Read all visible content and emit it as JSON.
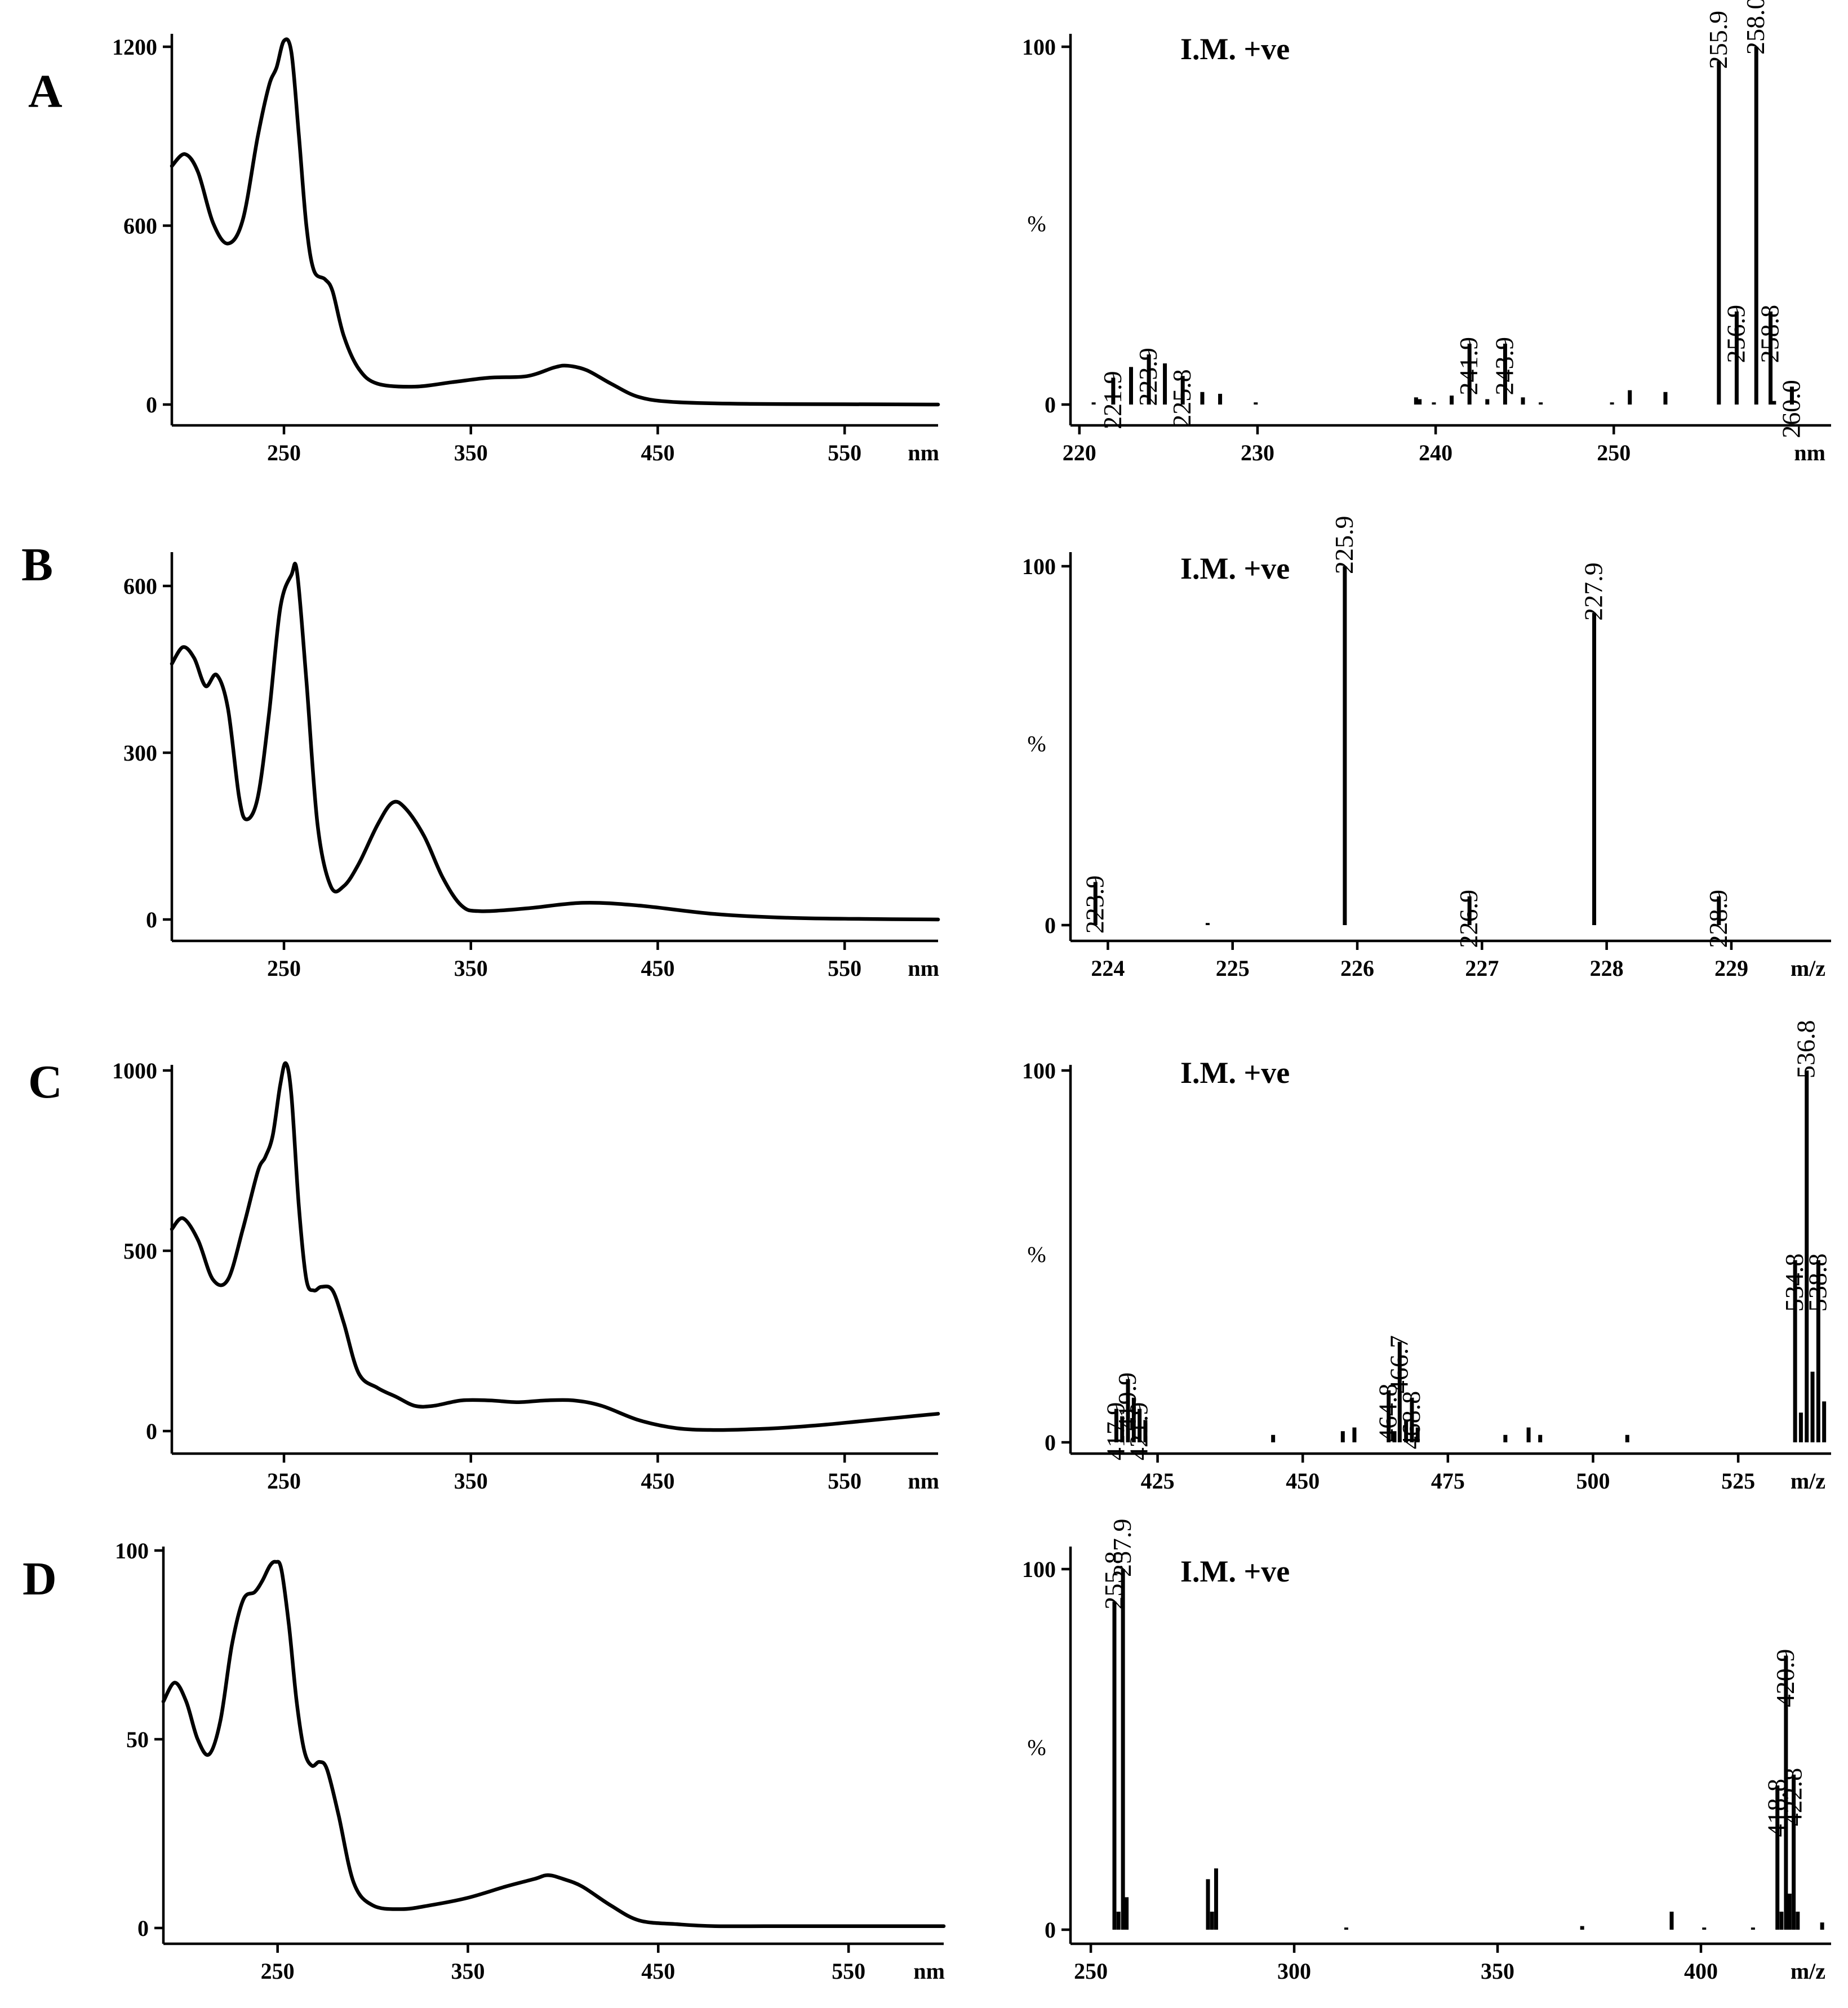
{
  "chart_data": [
    {
      "panel": "A",
      "type": "line",
      "name": "UV spectrum",
      "xunit": "nm",
      "xlim": [
        190,
        600
      ],
      "ylim": [
        0,
        1250
      ],
      "xticks": [
        250,
        350,
        450,
        550
      ],
      "yticks": [
        0,
        600,
        1200
      ],
      "x": [
        190,
        197,
        204,
        212,
        220,
        228,
        236,
        242,
        246,
        250,
        254,
        258,
        262,
        266,
        272,
        276,
        282,
        290,
        300,
        320,
        340,
        360,
        380,
        395,
        402,
        412,
        425,
        440,
        460,
        500,
        550,
        600
      ],
      "y": [
        800,
        840,
        780,
        610,
        540,
        620,
        900,
        1070,
        1130,
        1220,
        1180,
        900,
        600,
        450,
        420,
        380,
        230,
        120,
        70,
        60,
        75,
        90,
        95,
        125,
        130,
        115,
        70,
        25,
        8,
        2,
        1,
        0
      ]
    },
    {
      "panel": "A",
      "type": "bar",
      "name": "Mass spectrum",
      "mode": "I.M. +ve",
      "ylabel": "%",
      "xunit": "nm",
      "xlim": [
        219.5,
        262.2
      ],
      "ylim": [
        0,
        100
      ],
      "xticks": [
        220,
        230,
        240,
        250
      ],
      "yticks": [
        0,
        100
      ],
      "x": [
        220.8,
        221.9,
        222.9,
        223.9,
        224.8,
        225.8,
        226.9,
        227.9,
        229.9,
        238.9,
        239.1,
        239.9,
        240.9,
        241.9,
        242.9,
        243.9,
        244.9,
        245.9,
        249.9,
        250.9,
        252.9,
        255.9,
        256.9,
        258.0,
        258.8,
        259.0,
        260.0
      ],
      "values": [
        0.4,
        7.5,
        10.5,
        14,
        11.5,
        8,
        3.5,
        3,
        0.6,
        2,
        1.5,
        0.5,
        2.5,
        17,
        1.5,
        17,
        2,
        0.6,
        0.4,
        4,
        3.5,
        96,
        26,
        100,
        26,
        1,
        5
      ],
      "labels": {
        "x": [
          221.9,
          223.9,
          225.8,
          241.9,
          243.9,
          255.9,
          256.9,
          258.0,
          258.8,
          260.0
        ],
        "text": [
          "221.9",
          "223.9",
          "225.8",
          "241.9",
          "243.9",
          "255.9",
          "256.9",
          "258.0",
          "258.8",
          "260.0"
        ]
      }
    },
    {
      "panel": "B",
      "type": "line",
      "name": "UV spectrum",
      "xunit": "nm",
      "xlim": [
        190,
        600
      ],
      "ylim": [
        0,
        660
      ],
      "xticks": [
        250,
        350,
        450,
        550
      ],
      "yticks": [
        0,
        300,
        600
      ],
      "x": [
        190,
        196,
        202,
        208,
        214,
        220,
        226,
        230,
        236,
        242,
        248,
        254,
        257,
        262,
        268,
        275,
        282,
        290,
        300,
        308,
        315,
        325,
        335,
        345,
        355,
        380,
        410,
        440,
        480,
        520,
        560,
        600
      ],
      "y": [
        460,
        490,
        470,
        420,
        440,
        380,
        220,
        180,
        220,
        370,
        560,
        620,
        625,
        430,
        170,
        60,
        60,
        100,
        170,
        210,
        200,
        150,
        75,
        25,
        15,
        20,
        30,
        25,
        10,
        3,
        1,
        0
      ]
    },
    {
      "panel": "B",
      "type": "bar",
      "name": "Mass spectrum",
      "mode": "I.M. +ve",
      "ylabel": "%",
      "xunit": "m/z",
      "xlim": [
        223.7,
        229.8
      ],
      "ylim": [
        0,
        100
      ],
      "xticks": [
        224,
        225,
        226,
        227,
        228,
        229
      ],
      "yticks": [
        0,
        100
      ],
      "x": [
        223.9,
        224.8,
        225.9,
        226.9,
        227.9,
        228.9
      ],
      "values": [
        12,
        0.6,
        100,
        8,
        87,
        8
      ],
      "labels": {
        "x": [
          223.9,
          225.9,
          226.9,
          227.9,
          228.9
        ],
        "text": [
          "223.9",
          "225.9",
          "226.9",
          "227.9",
          "228.9"
        ]
      }
    },
    {
      "panel": "C",
      "type": "line",
      "name": "UV spectrum",
      "xunit": "nm",
      "xlim": [
        190,
        600
      ],
      "ylim": [
        0,
        1070
      ],
      "xticks": [
        250,
        350,
        450,
        550
      ],
      "yticks": [
        0,
        500,
        1000
      ],
      "x": [
        190,
        196,
        204,
        212,
        220,
        228,
        236,
        240,
        244,
        248,
        251,
        254,
        258,
        262,
        266,
        270,
        276,
        282,
        290,
        300,
        310,
        320,
        330,
        345,
        360,
        375,
        390,
        405,
        420,
        440,
        460,
        480,
        500,
        520,
        540,
        560,
        580,
        600
      ],
      "y": [
        560,
        590,
        530,
        420,
        420,
        560,
        720,
        760,
        820,
        960,
        1020,
        930,
        620,
        420,
        390,
        400,
        390,
        300,
        160,
        120,
        95,
        70,
        70,
        85,
        85,
        80,
        85,
        85,
        70,
        30,
        8,
        3,
        5,
        10,
        18,
        28,
        38,
        48
      ]
    },
    {
      "panel": "C",
      "type": "bar",
      "name": "Mass spectrum",
      "mode": "I.M. +ve",
      "ylabel": "%",
      "xunit": "m/z",
      "xlim": [
        410,
        541
      ],
      "ylim": [
        0,
        100
      ],
      "xticks": [
        425,
        450,
        475,
        500,
        525
      ],
      "yticks": [
        0,
        100
      ],
      "x": [
        417.9,
        418.9,
        419.9,
        420.9,
        421.9,
        422.9,
        444.9,
        456.9,
        458.9,
        464.8,
        465.8,
        466.7,
        467.8,
        468.8,
        469.8,
        484.9,
        488.9,
        490.9,
        505.9,
        534.8,
        535.8,
        536.8,
        537.8,
        538.8,
        539.8
      ],
      "values": [
        9,
        7,
        17,
        12,
        9,
        6,
        2,
        3,
        4,
        14,
        3,
        27,
        6,
        12,
        4,
        2,
        4,
        2,
        2,
        49,
        8,
        100,
        19,
        49,
        11
      ],
      "labels": {
        "x": [
          417.9,
          419.9,
          421.9,
          464.8,
          466.7,
          468.8,
          534.8,
          536.8,
          538.8
        ],
        "text": [
          "417.9",
          "419.9",
          "421.9",
          "464.8",
          "466.7",
          "468.8",
          "534.8",
          "536.8",
          "538.8"
        ]
      }
    },
    {
      "panel": "D",
      "type": "line",
      "name": "UV spectrum",
      "xunit": "nm",
      "xlim": [
        190,
        600
      ],
      "ylim": [
        0,
        103
      ],
      "xticks": [
        250,
        350,
        450,
        550
      ],
      "yticks": [
        0,
        50,
        100
      ],
      "x": [
        190,
        196,
        202,
        208,
        214,
        220,
        226,
        232,
        238,
        242,
        246,
        249,
        252,
        256,
        260,
        264,
        268,
        272,
        276,
        282,
        290,
        300,
        315,
        330,
        350,
        370,
        385,
        392,
        400,
        410,
        425,
        440,
        460,
        480,
        520,
        560,
        600
      ],
      "y": [
        60,
        65,
        60,
        50,
        46,
        55,
        75,
        87,
        89,
        92,
        96,
        97,
        95,
        80,
        60,
        47,
        43,
        44,
        42,
        30,
        12,
        6,
        5,
        6,
        8,
        11,
        13,
        14,
        13,
        11,
        6,
        2,
        1,
        0.5,
        0.5,
        0.5,
        0.5
      ]
    },
    {
      "panel": "D",
      "type": "bar",
      "name": "Mass spectrum",
      "mode": "I.M. +ve",
      "ylabel": "%",
      "xunit": "m/z",
      "xlim": [
        245,
        432
      ],
      "ylim": [
        0,
        100
      ],
      "xticks": [
        250,
        300,
        350,
        400
      ],
      "yticks": [
        0,
        100
      ],
      "x": [
        255.8,
        256.8,
        257.9,
        258.8,
        278.8,
        279.8,
        280.8,
        312.8,
        370.8,
        392.8,
        400.8,
        412.8,
        418.8,
        419.8,
        420.9,
        421.8,
        422.8,
        423.8,
        429.8
      ],
      "values": [
        91,
        5,
        100,
        9,
        14,
        5,
        17,
        0.5,
        1,
        5,
        0.5,
        0.5,
        40,
        5,
        76,
        10,
        43,
        5,
        2
      ],
      "labels": {
        "x": [
          255.8,
          257.9,
          418.8,
          420.9,
          422.8
        ],
        "text": [
          "255.8",
          "257.9",
          "418.8",
          "420.9",
          "422.8"
        ]
      }
    }
  ],
  "panel_tags": [
    "A",
    "B",
    "C",
    "D"
  ]
}
